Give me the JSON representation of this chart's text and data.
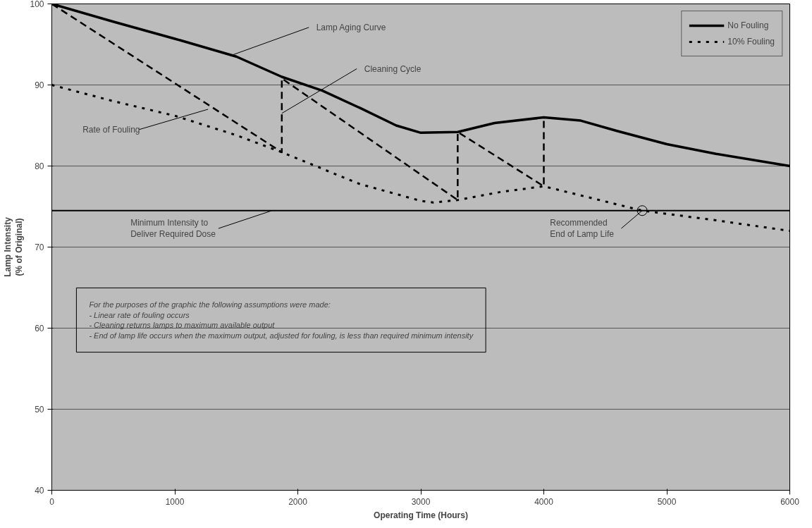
{
  "chart_data": {
    "type": "line",
    "xlabel": "Operating Time (Hours)",
    "ylabel": "Lamp Intensity\n(% of Original)",
    "xlim": [
      0,
      6000
    ],
    "ylim": [
      40,
      100
    ],
    "xticks": [
      0,
      1000,
      2000,
      3000,
      4000,
      5000,
      6000
    ],
    "yticks": [
      40,
      50,
      60,
      70,
      80,
      90,
      100
    ],
    "grid": "y",
    "legend": "top right",
    "marker": "none",
    "series": [
      {
        "name": "No Fouling",
        "color": "#000000",
        "line_style": "solid",
        "x": [
          0,
          500,
          1000,
          1500,
          1870,
          2200,
          2500,
          2800,
          3000,
          3300,
          3600,
          4000,
          4300,
          4600,
          5000,
          5400,
          6000
        ],
        "values": [
          100,
          97.8,
          95.7,
          93.5,
          91,
          89.3,
          87.2,
          85,
          84.1,
          84.2,
          85.3,
          86,
          85.6,
          84.3,
          82.7,
          81.5,
          80
        ]
      },
      {
        "name": "10% Fouling",
        "color": "#000000",
        "line_style": "dotted",
        "x": [
          0,
          500,
          1000,
          1500,
          1870,
          2500,
          3000,
          3100,
          3300,
          3650,
          4000,
          4400,
          4800,
          5400,
          6000
        ],
        "values": [
          90,
          88,
          86.2,
          83.8,
          81.7,
          77.8,
          75.7,
          75.5,
          75.8,
          76.8,
          77.5,
          76,
          74.5,
          73.3,
          72
        ]
      },
      {
        "color": "#000000",
        "line_style": "dashed",
        "x": [
          0,
          1870,
          1870,
          3300,
          3300,
          4000,
          4000
        ],
        "values": [
          100,
          81.7,
          90.8,
          75.8,
          84.2,
          77.5,
          86
        ]
      }
    ],
    "ref_lines": [
      {
        "axis": "y",
        "value": 74.5,
        "color": "#000000",
        "line_style": "solid"
      }
    ],
    "annotations": [
      {
        "text": "Lamp Aging Curve",
        "x": 1450,
        "y": 93.6
      },
      {
        "text": "Cleaning Cycle",
        "x": 1870,
        "y": 86.5
      },
      {
        "text": "Rate of Fouling",
        "x": 1270,
        "y": 87
      },
      {
        "text": "Minimum Intensity to\nDeliver Required Dose",
        "x": 1790,
        "y": 74.5
      },
      {
        "text": "Recommended\nEnd of Lamp Life",
        "x": 4800,
        "y": 74.5
      },
      "For the purposes of the graphic the following assumptions were made:\n- Linear rate of fouling occurs\n- Cleaning returns lamps to maximum available output\n- End of lamp life occurs when the maximum output, adjusted for fouling, is less than required minimum intensity"
    ]
  }
}
